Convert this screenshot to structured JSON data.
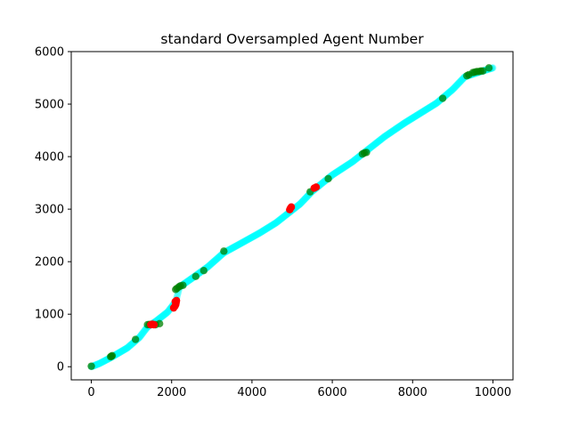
{
  "chart_data": {
    "type": "scatter",
    "title": "standard Oversampled Agent Number",
    "xlabel": "",
    "ylabel": "",
    "xlim": [
      -500,
      10500
    ],
    "ylim": [
      -250,
      6000
    ],
    "x_ticks": [
      0,
      2000,
      4000,
      6000,
      8000,
      10000
    ],
    "y_ticks": [
      0,
      1000,
      2000,
      3000,
      4000,
      5000,
      6000
    ],
    "x_tick_labels": [
      "0",
      "2000",
      "4000",
      "6000",
      "8000",
      "10000"
    ],
    "y_tick_labels": [
      "0",
      "1000",
      "2000",
      "3000",
      "4000",
      "5000",
      "6000"
    ],
    "grid": false,
    "legend": "none",
    "series": [
      {
        "color": "#00ffff",
        "alpha": 0.3,
        "trend": [
          [
            0,
            0
          ],
          [
            200,
            60
          ],
          [
            500,
            180
          ],
          [
            900,
            360
          ],
          [
            1200,
            560
          ],
          [
            1400,
            760
          ],
          [
            1600,
            860
          ],
          [
            1900,
            1040
          ],
          [
            2100,
            1240
          ],
          [
            2200,
            1520
          ],
          [
            2500,
            1680
          ],
          [
            2900,
            1900
          ],
          [
            3300,
            2170
          ],
          [
            3800,
            2380
          ],
          [
            4200,
            2550
          ],
          [
            4600,
            2740
          ],
          [
            4900,
            2920
          ],
          [
            5200,
            3100
          ],
          [
            5500,
            3340
          ],
          [
            6000,
            3650
          ],
          [
            6500,
            3900
          ],
          [
            6800,
            4080
          ],
          [
            7300,
            4380
          ],
          [
            7800,
            4640
          ],
          [
            8200,
            4830
          ],
          [
            8600,
            5020
          ],
          [
            9000,
            5280
          ],
          [
            9300,
            5520
          ],
          [
            9700,
            5620
          ],
          [
            10000,
            5690
          ]
        ],
        "count": 800
      },
      {
        "color": "#008000",
        "alpha": 0.75,
        "points": [
          [
            0,
            10
          ],
          [
            480,
            190
          ],
          [
            500,
            200
          ],
          [
            520,
            210
          ],
          [
            1100,
            520
          ],
          [
            1400,
            800
          ],
          [
            1450,
            805
          ],
          [
            1600,
            800
          ],
          [
            1700,
            820
          ],
          [
            2100,
            1470
          ],
          [
            2130,
            1490
          ],
          [
            2180,
            1520
          ],
          [
            2220,
            1540
          ],
          [
            2280,
            1550
          ],
          [
            2600,
            1720
          ],
          [
            2800,
            1830
          ],
          [
            3300,
            2200
          ],
          [
            5450,
            3330
          ],
          [
            5900,
            3580
          ],
          [
            6750,
            4050
          ],
          [
            6800,
            4070
          ],
          [
            6850,
            4080
          ],
          [
            8750,
            5110
          ],
          [
            9350,
            5540
          ],
          [
            9400,
            5560
          ],
          [
            9500,
            5600
          ],
          [
            9550,
            5610
          ],
          [
            9600,
            5620
          ],
          [
            9650,
            5620
          ],
          [
            9700,
            5630
          ],
          [
            9750,
            5630
          ],
          [
            9900,
            5690
          ]
        ]
      },
      {
        "color": "#ff0000",
        "alpha": 1.0,
        "points": [
          [
            1480,
            800
          ],
          [
            1520,
            810
          ],
          [
            1560,
            800
          ],
          [
            2050,
            1120
          ],
          [
            2080,
            1150
          ],
          [
            2100,
            1180
          ],
          [
            2110,
            1220
          ],
          [
            2120,
            1260
          ],
          [
            2090,
            1240
          ],
          [
            4940,
            2990
          ],
          [
            4960,
            3020
          ],
          [
            4980,
            3040
          ],
          [
            5550,
            3400
          ],
          [
            5600,
            3420
          ]
        ]
      }
    ]
  }
}
